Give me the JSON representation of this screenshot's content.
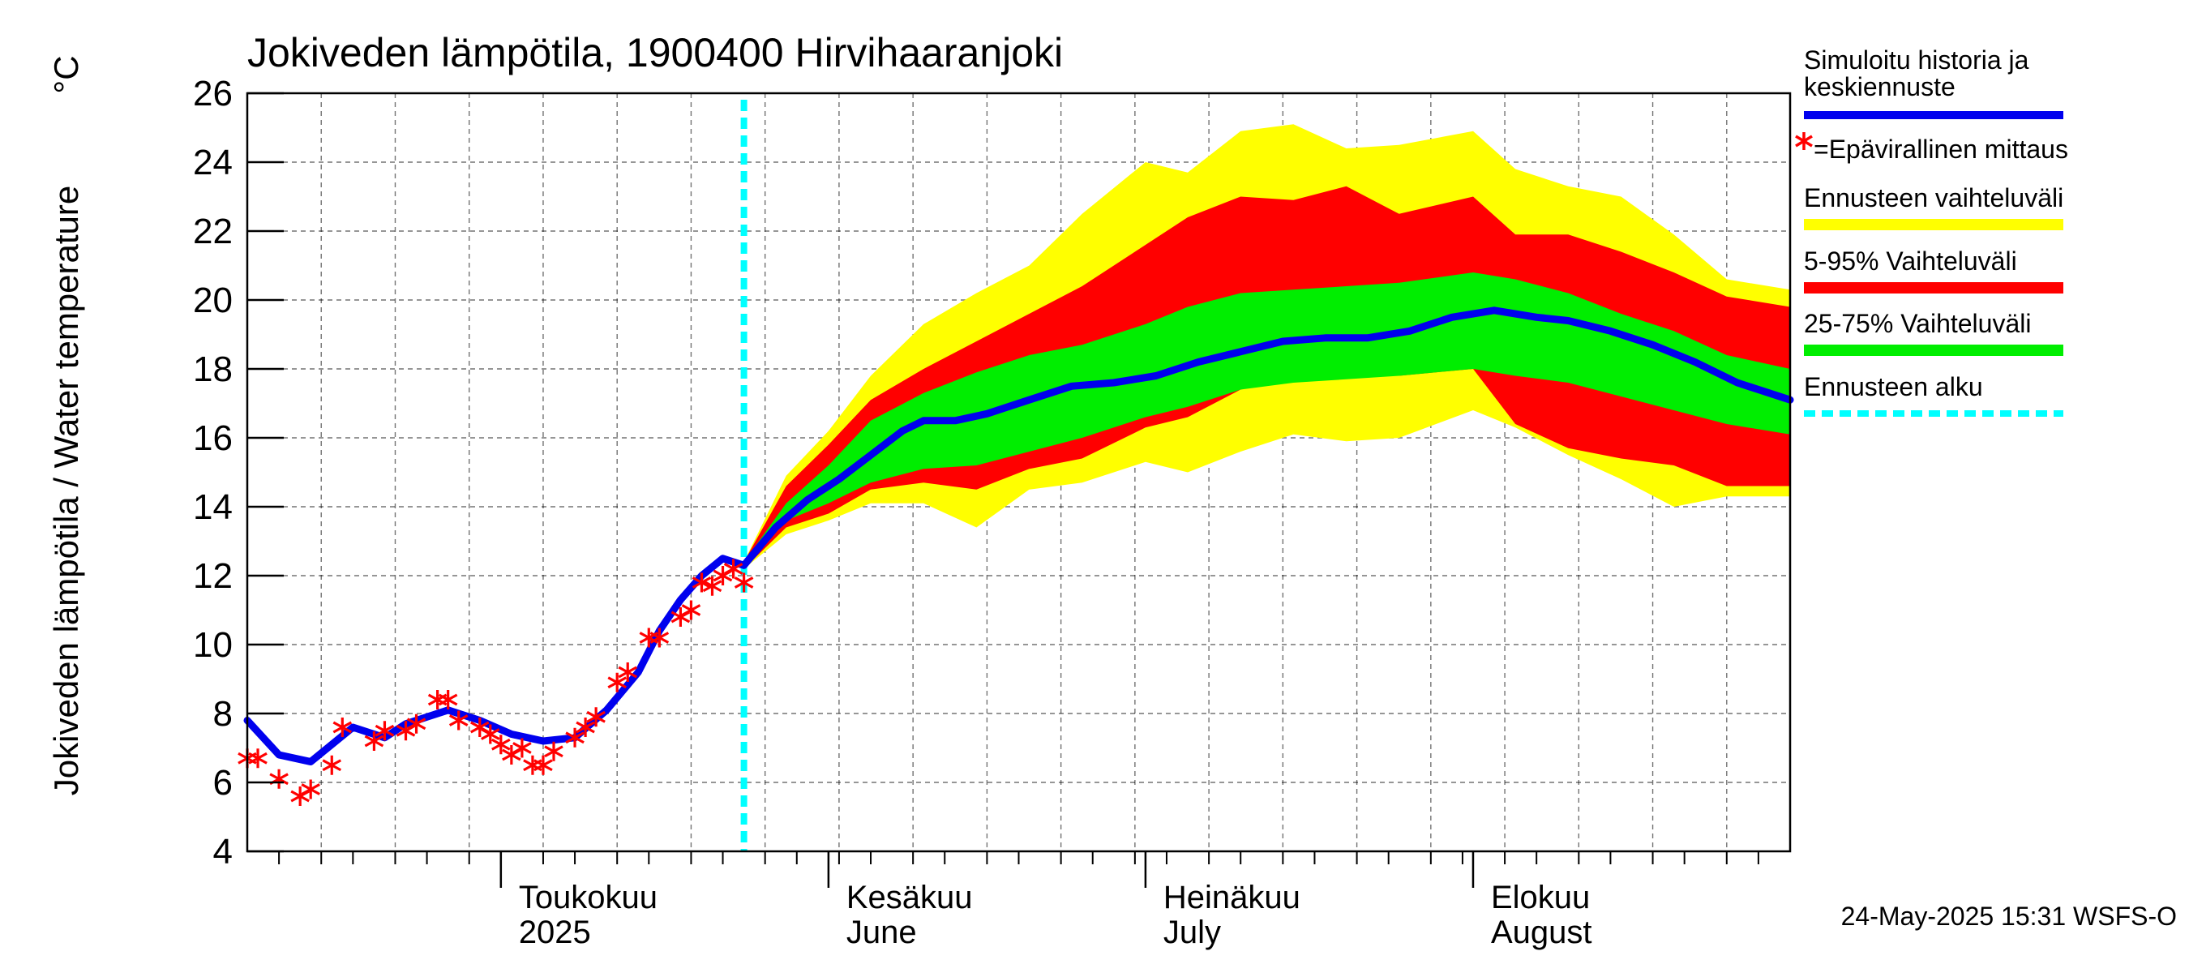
{
  "chart_data": {
    "type": "line",
    "title": "Jokiveden lämpötila, 1900400 Hirvihaaranjoki",
    "ylabel": "Jokiveden lämpötila / Water temperature",
    "yunit": "°C",
    "ylim": [
      4,
      26
    ],
    "yticks": [
      4,
      6,
      8,
      10,
      12,
      14,
      16,
      18,
      20,
      22,
      24,
      26
    ],
    "xlim": [
      "2025-04-07",
      "2025-08-31"
    ],
    "grid": true,
    "legend_position": "right",
    "forecast_start": "2025-05-24",
    "months": [
      {
        "label_fi": "Toukokuu",
        "label_en": "2025",
        "date": "2025-05-01"
      },
      {
        "label_fi": "Kesäkuu",
        "label_en": "June",
        "date": "2025-06-01"
      },
      {
        "label_fi": "Heinäkuu",
        "label_en": "July",
        "date": "2025-07-01"
      },
      {
        "label_fi": "Elokuu",
        "label_en": "August",
        "date": "2025-08-01"
      }
    ],
    "band_dates": [
      "2025-05-24",
      "2025-05-28",
      "2025-06-01",
      "2025-06-05",
      "2025-06-10",
      "2025-06-15",
      "2025-06-20",
      "2025-06-25",
      "2025-07-01",
      "2025-07-05",
      "2025-07-10",
      "2025-07-15",
      "2025-07-20",
      "2025-07-25",
      "2025-08-01",
      "2025-08-05",
      "2025-08-10",
      "2025-08-15",
      "2025-08-20",
      "2025-08-25",
      "2025-08-31"
    ],
    "range_full": {
      "upper": [
        12.4,
        14.9,
        16.2,
        17.8,
        19.3,
        20.2,
        21.0,
        22.5,
        24.0,
        23.7,
        24.9,
        25.1,
        24.4,
        24.5,
        24.9,
        23.8,
        23.3,
        23.0,
        21.9,
        20.6,
        20.3
      ],
      "lower": [
        12.2,
        13.2,
        13.6,
        14.1,
        14.1,
        13.4,
        14.5,
        14.7,
        15.3,
        15.0,
        15.6,
        16.1,
        15.9,
        16.0,
        16.8,
        16.3,
        15.5,
        14.8,
        14.0,
        14.3,
        14.3
      ]
    },
    "range_5_95": {
      "upper": [
        12.4,
        14.6,
        15.8,
        17.1,
        18.0,
        18.8,
        19.6,
        20.4,
        21.6,
        22.4,
        23.0,
        22.9,
        23.3,
        22.5,
        23.0,
        21.9,
        21.9,
        21.4,
        20.8,
        20.1,
        19.8
      ],
      "lower": [
        12.2,
        13.4,
        13.8,
        14.5,
        14.7,
        14.5,
        15.1,
        15.4,
        16.3,
        16.6,
        17.4,
        17.8,
        17.9,
        17.8,
        18.0,
        16.4,
        15.7,
        15.4,
        15.2,
        14.6,
        14.6
      ]
    },
    "range_25_75": {
      "upper": [
        12.4,
        14.1,
        15.2,
        16.5,
        17.3,
        17.9,
        18.4,
        18.7,
        19.3,
        19.8,
        20.2,
        20.3,
        20.4,
        20.5,
        20.8,
        20.6,
        20.2,
        19.6,
        19.1,
        18.4,
        18.0
      ],
      "lower": [
        12.2,
        13.6,
        14.1,
        14.7,
        15.1,
        15.2,
        15.6,
        16.0,
        16.6,
        16.9,
        17.4,
        17.6,
        17.7,
        17.8,
        18.0,
        17.8,
        17.6,
        17.2,
        16.8,
        16.4,
        16.1
      ]
    },
    "series": [
      {
        "name": "Simuloitu historia ja keskiennuste",
        "color": "#0000ee",
        "x": [
          "2025-04-07",
          "2025-04-10",
          "2025-04-13",
          "2025-04-17",
          "2025-04-20",
          "2025-04-22",
          "2025-04-26",
          "2025-04-29",
          "2025-05-02",
          "2025-05-05",
          "2025-05-08",
          "2025-05-11",
          "2025-05-14",
          "2025-05-16",
          "2025-05-18",
          "2025-05-20",
          "2025-05-22",
          "2025-05-24",
          "2025-05-27",
          "2025-05-30",
          "2025-06-02",
          "2025-06-05",
          "2025-06-08",
          "2025-06-10",
          "2025-06-13",
          "2025-06-16",
          "2025-06-20",
          "2025-06-24",
          "2025-06-28",
          "2025-07-02",
          "2025-07-06",
          "2025-07-10",
          "2025-07-14",
          "2025-07-18",
          "2025-07-22",
          "2025-07-26",
          "2025-07-30",
          "2025-08-03",
          "2025-08-07",
          "2025-08-10",
          "2025-08-14",
          "2025-08-18",
          "2025-08-22",
          "2025-08-26",
          "2025-08-31"
        ],
        "y": [
          7.8,
          6.8,
          6.6,
          7.6,
          7.3,
          7.7,
          8.1,
          7.8,
          7.4,
          7.2,
          7.3,
          8.1,
          9.2,
          10.4,
          11.3,
          12.0,
          12.5,
          12.3,
          13.4,
          14.2,
          14.8,
          15.5,
          16.2,
          16.5,
          16.5,
          16.7,
          17.1,
          17.5,
          17.6,
          17.8,
          18.2,
          18.5,
          18.8,
          18.9,
          18.9,
          19.1,
          19.5,
          19.7,
          19.5,
          19.4,
          19.1,
          18.7,
          18.2,
          17.6,
          17.1
        ]
      },
      {
        "name": "Ennusteen vaihteluväli",
        "color": "#ffff00"
      },
      {
        "name": "5-95% Vaihteluväli",
        "color": "#ff0000"
      },
      {
        "name": "25-75% Vaihteluväli",
        "color": "#00ee00"
      },
      {
        "name": "Ennusteen alku",
        "color": "#00ffff"
      }
    ],
    "observations": {
      "name": "Epävirallinen mittaus",
      "color": "#ff0000",
      "x": [
        "2025-04-07",
        "2025-04-08",
        "2025-04-10",
        "2025-04-12",
        "2025-04-13",
        "2025-04-15",
        "2025-04-16",
        "2025-04-19",
        "2025-04-20",
        "2025-04-22",
        "2025-04-23",
        "2025-04-25",
        "2025-04-26",
        "2025-04-27",
        "2025-04-29",
        "2025-04-30",
        "2025-05-01",
        "2025-05-02",
        "2025-05-03",
        "2025-05-04",
        "2025-05-05",
        "2025-05-06",
        "2025-05-08",
        "2025-05-09",
        "2025-05-10",
        "2025-05-12",
        "2025-05-13",
        "2025-05-15",
        "2025-05-16",
        "2025-05-18",
        "2025-05-19",
        "2025-05-20",
        "2025-05-21",
        "2025-05-22",
        "2025-05-23",
        "2025-05-24"
      ],
      "y": [
        6.7,
        6.7,
        6.1,
        5.6,
        5.8,
        6.5,
        7.6,
        7.2,
        7.5,
        7.5,
        7.7,
        8.4,
        8.4,
        7.8,
        7.6,
        7.4,
        7.1,
        6.8,
        7.0,
        6.5,
        6.5,
        6.9,
        7.3,
        7.6,
        7.9,
        8.9,
        9.2,
        10.2,
        10.2,
        10.8,
        11.0,
        11.8,
        11.7,
        12.0,
        12.2,
        11.8
      ]
    }
  },
  "legend": {
    "simulated_line1": "Simuloitu historia ja",
    "simulated_line2": "keskiennuste",
    "measurement": "=Epävirallinen mittaus",
    "full_range": "Ennusteen vaihteluväli",
    "range_5_95": "5-95% Vaihteluväli",
    "range_25_75": "25-75% Vaihteluväli",
    "forecast_start": "Ennusteen alku"
  },
  "timestamp": "24-May-2025 15:31 WSFS-O"
}
